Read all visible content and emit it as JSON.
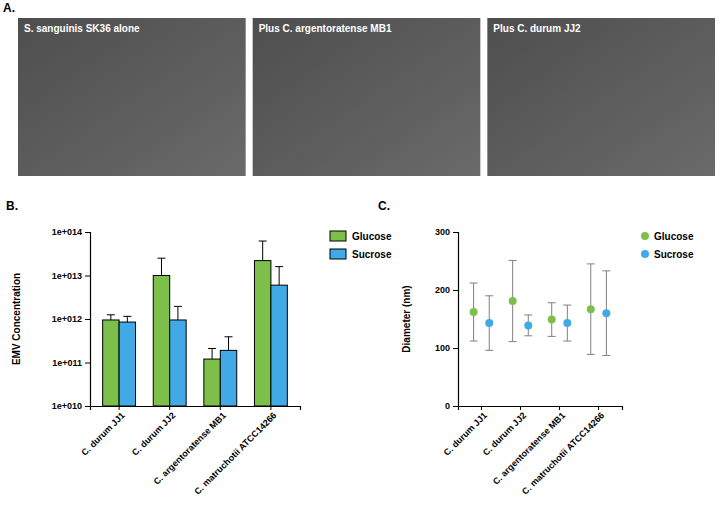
{
  "panel_a": {
    "panel": "A.",
    "images": [
      "S. sanguinis SK36 alone",
      "Plus C. argentoratense MB1",
      "Plus C. durum JJ2"
    ]
  },
  "chart_data": [
    {
      "type": "bar",
      "panel": "B.",
      "y_label": "EMV Concentration",
      "log": "y",
      "categories": [
        "C. durum JJ1",
        "C. durum JJ2",
        "C. argentoratense MB1",
        "C. matruchotii ATCC14266"
      ],
      "series": [
        {
          "name": "Glucose",
          "color": "#7cc04b",
          "values": [
            950000000000,
            10000000000000,
            120000000000,
            22000000000000
          ],
          "errors": [
            300000000000,
            15000000000000,
            90000000000,
            40000000000000
          ]
        },
        {
          "name": "Sucrose",
          "color": "#40a9e6",
          "values": [
            850000000000,
            950000000000,
            190000000000,
            6000000000000
          ],
          "errors": [
            300000000000,
            1000000000000,
            200000000000,
            10000000000000
          ]
        }
      ],
      "ylim": [
        10000000000,
        100000000000000
      ],
      "yticks": [
        {
          "value": 10000000000,
          "label": "1e+010"
        },
        {
          "value": 100000000000,
          "label": "1e+011"
        },
        {
          "value": 1000000000000,
          "label": "1e+012"
        },
        {
          "value": 10000000000000,
          "label": "1e+013"
        },
        {
          "value": 100000000000000,
          "label": "1e+014"
        }
      ],
      "legend": "right"
    },
    {
      "type": "scatter",
      "panel": "C.",
      "y_label": "Diameter (nm)",
      "marker": "circle",
      "categories": [
        "C. durum JJ1",
        "C. durum JJ2",
        "C. argentoratense MB1",
        "C. matruchotii ATCC14266"
      ],
      "series": [
        {
          "name": "Glucose",
          "color": "#7cc04b",
          "values": [
            162,
            181,
            149,
            167
          ],
          "errors": [
            50,
            70,
            29,
            78
          ]
        },
        {
          "name": "Sucrose",
          "color": "#40a9e6",
          "values": [
            143,
            139,
            143,
            160
          ],
          "errors": [
            47,
            18,
            31,
            73
          ]
        }
      ],
      "ylim": [
        0,
        300
      ],
      "yticks": [
        0,
        100,
        200,
        300
      ],
      "legend": "right"
    }
  ]
}
